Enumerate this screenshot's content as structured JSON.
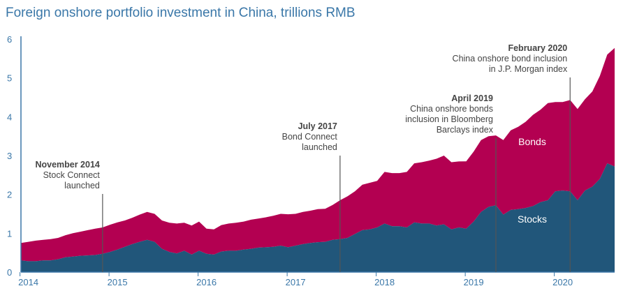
{
  "chart_data": {
    "type": "area",
    "title": "Foreign onshore portfolio investment in China, trillions RMB",
    "xlabel": "",
    "ylabel": "",
    "x_range": [
      "2013-12",
      "2020-08"
    ],
    "ylim": [
      0,
      6
    ],
    "yticks": [
      "0",
      "1",
      "2",
      "3",
      "4",
      "5",
      "6"
    ],
    "xticks": [
      "2014",
      "2015",
      "2016",
      "2017",
      "2018",
      "2019",
      "2020"
    ],
    "stacked": true,
    "grid": false,
    "x": [
      "2013-12",
      "2014-01",
      "2014-02",
      "2014-03",
      "2014-04",
      "2014-05",
      "2014-06",
      "2014-07",
      "2014-08",
      "2014-09",
      "2014-10",
      "2014-11",
      "2014-12",
      "2015-01",
      "2015-02",
      "2015-03",
      "2015-04",
      "2015-05",
      "2015-06",
      "2015-07",
      "2015-08",
      "2015-09",
      "2015-10",
      "2015-11",
      "2015-12",
      "2016-01",
      "2016-02",
      "2016-03",
      "2016-04",
      "2016-05",
      "2016-06",
      "2016-07",
      "2016-08",
      "2016-09",
      "2016-10",
      "2016-11",
      "2016-12",
      "2017-01",
      "2017-02",
      "2017-03",
      "2017-04",
      "2017-05",
      "2017-06",
      "2017-07",
      "2017-08",
      "2017-09",
      "2017-10",
      "2017-11",
      "2017-12",
      "2018-01",
      "2018-02",
      "2018-03",
      "2018-04",
      "2018-05",
      "2018-06",
      "2018-07",
      "2018-08",
      "2018-09",
      "2018-10",
      "2018-11",
      "2018-12",
      "2019-01",
      "2019-02",
      "2019-03",
      "2019-04",
      "2019-05",
      "2019-06",
      "2019-07",
      "2019-08",
      "2019-09",
      "2019-10",
      "2019-11",
      "2019-12",
      "2020-01",
      "2020-02",
      "2020-03",
      "2020-04",
      "2020-05",
      "2020-06",
      "2020-07",
      "2020-08"
    ],
    "series": [
      {
        "name": "Stocks",
        "color": "#21567a",
        "values": [
          0.3,
          0.28,
          0.28,
          0.3,
          0.3,
          0.33,
          0.38,
          0.4,
          0.42,
          0.43,
          0.44,
          0.47,
          0.52,
          0.58,
          0.65,
          0.72,
          0.78,
          0.83,
          0.78,
          0.6,
          0.52,
          0.48,
          0.55,
          0.45,
          0.55,
          0.47,
          0.45,
          0.53,
          0.55,
          0.55,
          0.58,
          0.6,
          0.63,
          0.64,
          0.65,
          0.68,
          0.64,
          0.68,
          0.72,
          0.75,
          0.77,
          0.78,
          0.83,
          0.85,
          0.88,
          0.98,
          1.08,
          1.1,
          1.15,
          1.25,
          1.18,
          1.18,
          1.15,
          1.28,
          1.25,
          1.25,
          1.2,
          1.23,
          1.1,
          1.15,
          1.12,
          1.3,
          1.55,
          1.68,
          1.72,
          1.48,
          1.6,
          1.62,
          1.65,
          1.7,
          1.8,
          1.85,
          2.08,
          2.1,
          2.08,
          1.85,
          2.1,
          2.2,
          2.4,
          2.8,
          2.72
        ]
      },
      {
        "name": "Bonds",
        "color": "#b30051",
        "values": [
          0.45,
          0.5,
          0.53,
          0.53,
          0.55,
          0.55,
          0.57,
          0.6,
          0.62,
          0.65,
          0.68,
          0.68,
          0.7,
          0.7,
          0.68,
          0.68,
          0.7,
          0.72,
          0.72,
          0.73,
          0.75,
          0.77,
          0.72,
          0.75,
          0.75,
          0.65,
          0.65,
          0.68,
          0.7,
          0.72,
          0.72,
          0.75,
          0.75,
          0.77,
          0.8,
          0.82,
          0.85,
          0.82,
          0.83,
          0.83,
          0.85,
          0.85,
          0.9,
          1.0,
          1.07,
          1.1,
          1.17,
          1.2,
          1.2,
          1.33,
          1.37,
          1.37,
          1.43,
          1.52,
          1.58,
          1.62,
          1.72,
          1.77,
          1.73,
          1.7,
          1.73,
          1.8,
          1.85,
          1.82,
          1.8,
          1.92,
          2.05,
          2.12,
          2.22,
          2.35,
          2.38,
          2.5,
          2.3,
          2.28,
          2.35,
          2.35,
          2.35,
          2.45,
          2.65,
          2.8,
          3.05
        ]
      }
    ],
    "series_labels": [
      "Bonds",
      "Stocks"
    ],
    "annotations": [
      {
        "x": "2014-11",
        "lines": [
          "November 2014",
          "Stock Connect",
          "launched"
        ]
      },
      {
        "x": "2017-07",
        "lines": [
          "July 2017",
          "Bond Connect",
          "launched"
        ]
      },
      {
        "x": "2019-04",
        "lines": [
          "April 2019",
          "China onshore bonds",
          "inclusion in Bloomberg",
          "Barclays index"
        ]
      },
      {
        "x": "2020-02",
        "lines": [
          "February 2020",
          "China onshore bond inclusion",
          "in J.P. Morgan index"
        ]
      }
    ]
  }
}
